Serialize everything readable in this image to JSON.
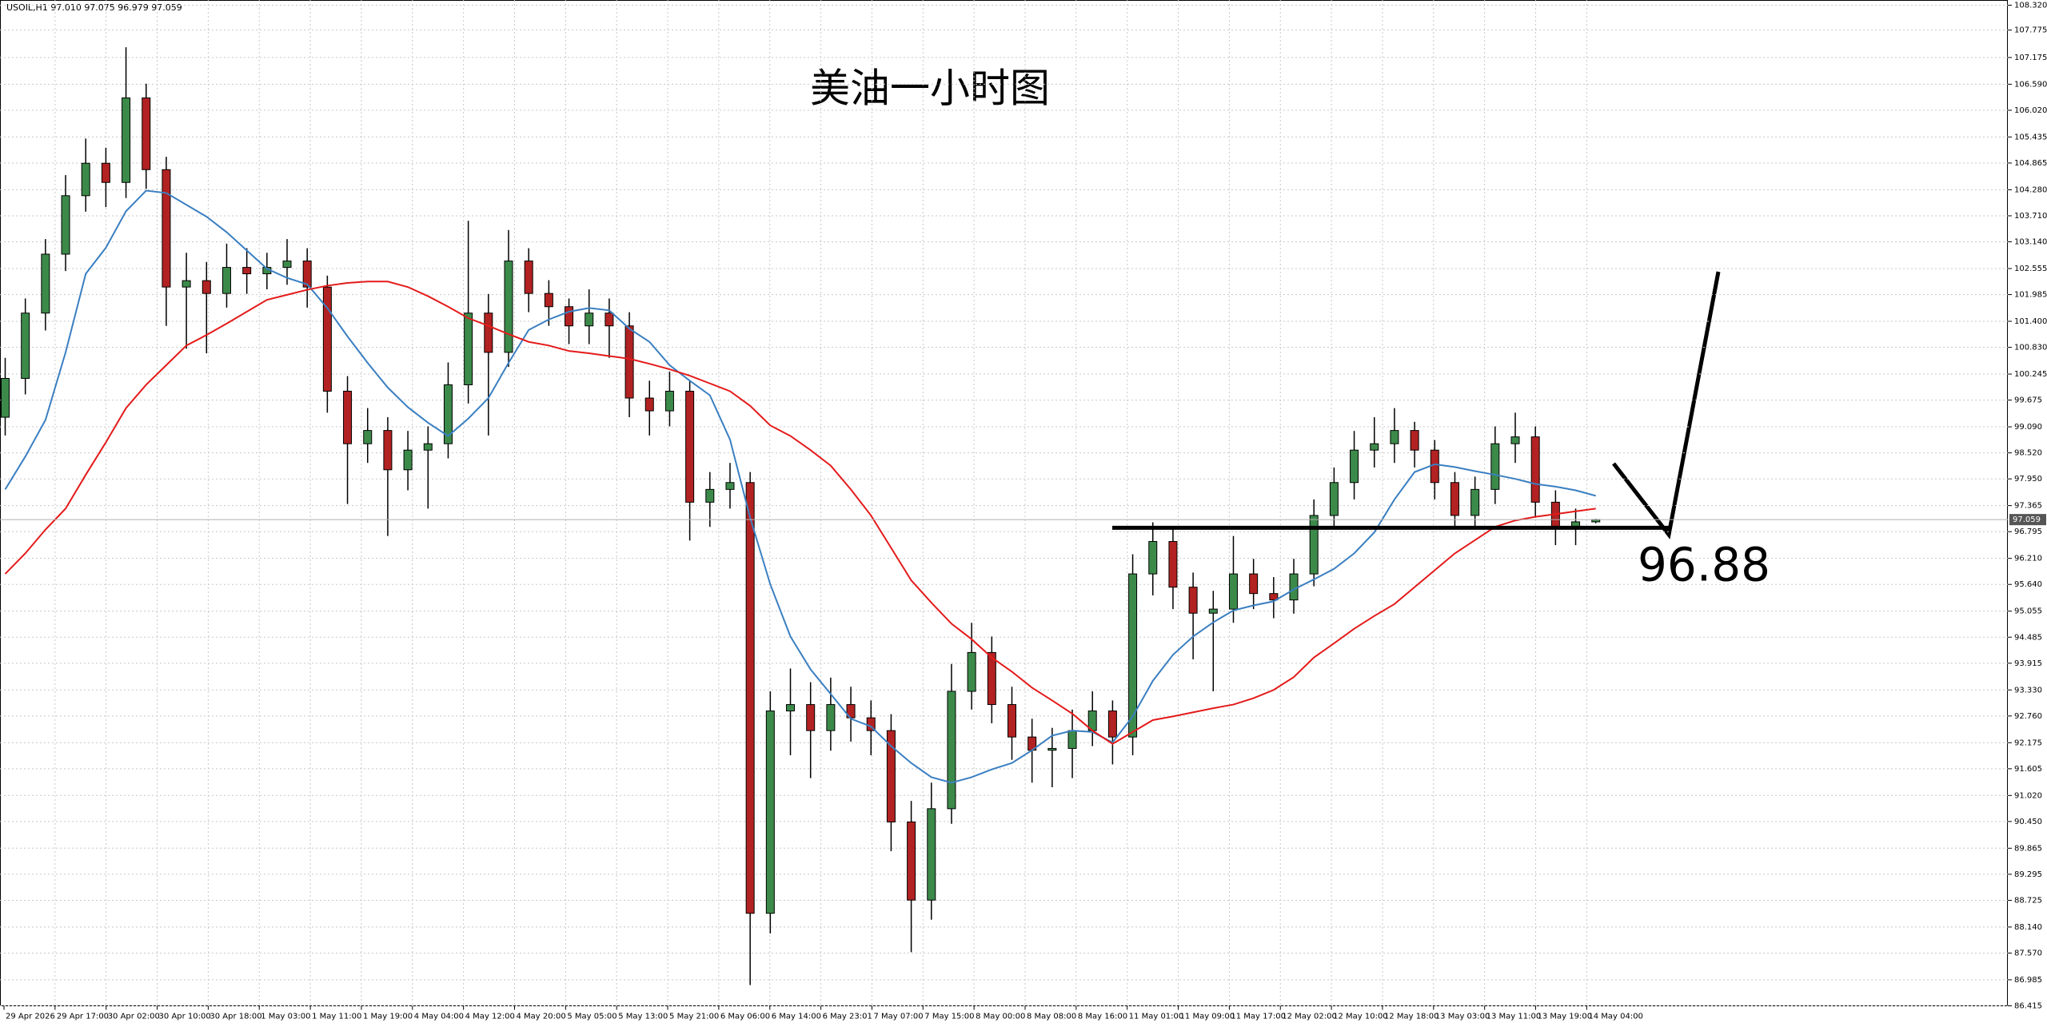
{
  "chart_data": {
    "type": "candlestick",
    "header": "USOIL,H1 97.010 97.075 96.979 97.059",
    "title": "美油一小时图",
    "open": [
      99.3,
      100.15,
      101.58,
      102.87,
      104.15,
      104.86,
      104.44,
      106.29,
      104.72,
      102.15,
      102.29,
      102.01,
      102.58,
      102.44,
      102.58,
      102.72,
      102.15,
      99.87,
      98.72,
      99.01,
      98.15,
      98.58,
      98.72,
      100.01,
      101.58,
      100.72,
      102.72,
      102.01,
      101.72,
      101.3,
      101.58,
      101.3,
      99.72,
      99.44,
      99.87,
      97.44,
      97.72,
      97.87,
      88.44,
      92.87,
      93.01,
      92.44,
      93.01,
      92.72,
      92.44,
      90.44,
      88.73,
      90.73,
      93.3,
      94.15,
      93.01,
      92.3,
      92.01,
      92.05,
      92.44,
      92.87,
      92.3,
      95.87,
      96.58,
      95.58,
      95.01,
      95.1,
      95.87,
      95.44,
      95.3,
      95.87,
      97.15,
      97.87,
      98.58,
      98.72,
      99.01,
      98.58,
      97.87,
      97.15,
      97.72,
      98.72,
      98.87,
      97.44,
      96.87,
      97.01
    ],
    "high": [
      100.6,
      101.9,
      103.2,
      104.6,
      105.4,
      105.2,
      107.4,
      106.6,
      105.0,
      102.9,
      102.7,
      103.1,
      103.0,
      102.9,
      103.2,
      103.0,
      102.4,
      100.2,
      99.5,
      99.3,
      99.0,
      99.1,
      100.5,
      103.6,
      102.0,
      103.4,
      103.0,
      102.3,
      101.9,
      102.1,
      101.9,
      101.6,
      100.1,
      100.3,
      100.1,
      98.1,
      98.3,
      98.1,
      93.3,
      93.8,
      93.5,
      93.6,
      93.4,
      93.1,
      92.8,
      90.9,
      91.3,
      93.9,
      94.8,
      94.5,
      93.4,
      92.7,
      92.5,
      92.9,
      93.3,
      93.1,
      96.3,
      97.0,
      96.9,
      95.9,
      95.5,
      96.7,
      96.2,
      95.8,
      96.2,
      97.5,
      98.2,
      99.0,
      99.3,
      99.5,
      99.2,
      98.8,
      98.1,
      98.0,
      99.1,
      99.4,
      99.1,
      97.7,
      97.3,
      97.075
    ],
    "low": [
      98.9,
      99.8,
      101.2,
      102.5,
      103.8,
      103.9,
      104.1,
      104.3,
      101.3,
      100.8,
      100.7,
      101.7,
      102.0,
      102.1,
      102.2,
      101.7,
      99.4,
      97.4,
      98.3,
      96.7,
      97.7,
      97.3,
      98.4,
      99.6,
      98.9,
      100.4,
      101.6,
      101.3,
      100.9,
      100.9,
      100.6,
      99.3,
      98.9,
      99.1,
      96.6,
      96.9,
      97.3,
      86.87,
      88.0,
      91.9,
      91.4,
      92.0,
      92.2,
      91.9,
      89.8,
      87.59,
      88.3,
      90.4,
      92.9,
      92.6,
      91.8,
      91.3,
      91.2,
      91.4,
      92.1,
      91.7,
      91.9,
      95.4,
      95.1,
      94.0,
      93.3,
      94.8,
      95.1,
      94.9,
      95.0,
      95.6,
      96.9,
      97.5,
      98.2,
      98.3,
      98.2,
      97.5,
      96.9,
      96.9,
      97.4,
      98.3,
      97.1,
      96.5,
      96.5,
      96.979
    ],
    "close": [
      100.15,
      101.58,
      102.87,
      104.15,
      104.86,
      104.44,
      106.29,
      104.72,
      102.15,
      102.29,
      102.01,
      102.58,
      102.44,
      102.58,
      102.72,
      102.15,
      99.87,
      98.72,
      99.01,
      98.15,
      98.58,
      98.72,
      100.01,
      101.58,
      100.72,
      102.72,
      102.01,
      101.72,
      101.3,
      101.58,
      101.3,
      99.72,
      99.44,
      99.87,
      97.44,
      97.72,
      97.87,
      88.44,
      92.87,
      93.01,
      92.44,
      93.01,
      92.72,
      92.44,
      90.44,
      88.73,
      90.73,
      93.3,
      94.15,
      93.01,
      92.3,
      92.01,
      92.05,
      92.44,
      92.87,
      92.3,
      95.87,
      96.58,
      95.58,
      95.01,
      95.1,
      95.87,
      95.44,
      95.3,
      95.87,
      97.15,
      97.87,
      98.58,
      98.72,
      99.01,
      98.58,
      97.87,
      97.15,
      97.72,
      98.72,
      98.87,
      97.44,
      96.87,
      97.01,
      97.059
    ],
    "up_color": "#3c8a4a",
    "down_color": "#b22222",
    "overlays": [
      {
        "color": "#3a7fc1",
        "values": [
          97.72,
          98.44,
          99.24,
          100.72,
          102.44,
          103.01,
          103.81,
          104.26,
          104.21,
          103.95,
          103.69,
          103.35,
          102.95,
          102.55,
          102.35,
          102.21,
          101.69,
          101.07,
          100.49,
          99.95,
          99.52,
          99.18,
          98.89,
          99.27,
          99.72,
          100.49,
          101.21,
          101.44,
          101.61,
          101.69,
          101.64,
          101.24,
          100.95,
          100.44,
          100.1,
          99.78,
          98.81,
          97.1,
          95.64,
          94.5,
          93.78,
          93.24,
          92.7,
          92.53,
          92.1,
          91.73,
          91.42,
          91.3,
          91.42,
          91.59,
          91.73,
          92.01,
          92.33,
          92.44,
          92.41,
          92.18,
          92.75,
          93.53,
          94.1,
          94.5,
          94.81,
          95.07,
          95.18,
          95.27,
          95.53,
          95.75,
          95.98,
          96.32,
          96.78,
          97.5,
          98.1,
          98.27,
          98.21,
          98.12,
          98.04,
          97.95,
          97.84,
          97.78,
          97.7,
          97.58
        ]
      },
      {
        "color": "#e41a1a",
        "values": [
          95.87,
          96.32,
          96.84,
          97.3,
          98.04,
          98.75,
          99.5,
          100.01,
          100.44,
          100.87,
          101.1,
          101.35,
          101.61,
          101.87,
          101.98,
          102.09,
          102.18,
          102.24,
          102.27,
          102.27,
          102.15,
          101.95,
          101.72,
          101.47,
          101.3,
          101.12,
          100.95,
          100.87,
          100.75,
          100.7,
          100.64,
          100.58,
          100.47,
          100.35,
          100.21,
          100.04,
          99.87,
          99.55,
          99.12,
          98.89,
          98.58,
          98.24,
          97.72,
          97.15,
          96.44,
          95.73,
          95.24,
          94.78,
          94.44,
          94.04,
          93.73,
          93.38,
          93.1,
          92.81,
          92.44,
          92.15,
          92.41,
          92.67,
          92.75,
          92.84,
          92.93,
          93.01,
          93.15,
          93.33,
          93.61,
          94.04,
          94.35,
          94.67,
          94.95,
          95.21,
          95.58,
          95.95,
          96.32,
          96.61,
          96.9,
          97.04,
          97.12,
          97.18,
          97.24,
          97.3
        ]
      }
    ],
    "level": {
      "value": 96.88,
      "label": "96.88"
    },
    "current_price": {
      "value": 97.059,
      "label": "97.059"
    },
    "ylim": [
      86.415,
      108.32
    ],
    "yticks": [
      {
        "value": 108.32,
        "label": "108.320"
      },
      {
        "value": 107.775,
        "label": "107.775"
      },
      {
        "value": 107.175,
        "label": "107.175"
      },
      {
        "value": 106.59,
        "label": "106.590"
      },
      {
        "value": 106.02,
        "label": "106.020"
      },
      {
        "value": 105.435,
        "label": "105.435"
      },
      {
        "value": 104.865,
        "label": "104.865"
      },
      {
        "value": 104.28,
        "label": "104.280"
      },
      {
        "value": 103.71,
        "label": "103.710"
      },
      {
        "value": 103.14,
        "label": "103.140"
      },
      {
        "value": 102.555,
        "label": "102.555"
      },
      {
        "value": 101.985,
        "label": "101.985"
      },
      {
        "value": 101.4,
        "label": "101.400"
      },
      {
        "value": 100.83,
        "label": "100.830"
      },
      {
        "value": 100.245,
        "label": "100.245"
      },
      {
        "value": 99.675,
        "label": "99.675"
      },
      {
        "value": 99.09,
        "label": "99.090"
      },
      {
        "value": 98.52,
        "label": "98.520"
      },
      {
        "value": 97.95,
        "label": "97.950"
      },
      {
        "value": 97.365,
        "label": "97.365"
      },
      {
        "value": 96.795,
        "label": "96.795"
      },
      {
        "value": 96.21,
        "label": "96.210"
      },
      {
        "value": 95.64,
        "label": "95.640"
      },
      {
        "value": 95.055,
        "label": "95.055"
      },
      {
        "value": 94.485,
        "label": "94.485"
      },
      {
        "value": 93.915,
        "label": "93.915"
      },
      {
        "value": 93.33,
        "label": "93.330"
      },
      {
        "value": 92.76,
        "label": "92.760"
      },
      {
        "value": 92.175,
        "label": "92.175"
      },
      {
        "value": 91.605,
        "label": "91.605"
      },
      {
        "value": 91.02,
        "label": "91.020"
      },
      {
        "value": 90.45,
        "label": "90.450"
      },
      {
        "value": 89.865,
        "label": "89.865"
      },
      {
        "value": 89.295,
        "label": "89.295"
      },
      {
        "value": 88.725,
        "label": "88.725"
      },
      {
        "value": 88.14,
        "label": "88.140"
      },
      {
        "value": 87.57,
        "label": "87.570"
      },
      {
        "value": 86.985,
        "label": "86.985"
      },
      {
        "value": 86.415,
        "label": "86.415"
      }
    ],
    "time_labels": [
      "29 Apr 2026",
      "29 Apr 17:00",
      "30 Apr 02:00",
      "30 Apr 10:00",
      "30 Apr 18:00",
      "1 May 03:00",
      "1 May 11:00",
      "1 May 19:00",
      "4 May 04:00",
      "4 May 12:00",
      "4 May 20:00",
      "5 May 05:00",
      "5 May 13:00",
      "5 May 21:00",
      "6 May 06:00",
      "6 May 14:00",
      "6 May 23:01",
      "7 May 07:00",
      "7 May 15:00",
      "8 May 00:00",
      "8 May 08:00",
      "8 May 16:00",
      "11 May 01:00",
      "11 May 09:00",
      "11 May 17:00",
      "12 May 02:00",
      "12 May 10:00",
      "12 May 18:00",
      "13 May 03:00",
      "13 May 11:00",
      "13 May 19:00",
      "14 May 04:00"
    ],
    "grid": true
  }
}
